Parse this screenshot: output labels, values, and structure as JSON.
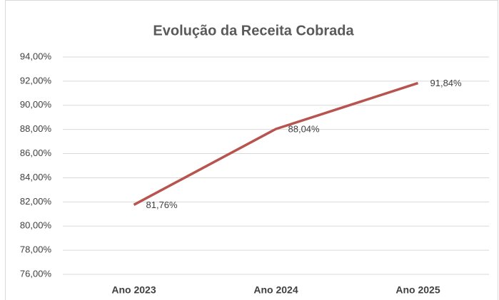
{
  "chart_data": {
    "type": "line",
    "title": "Evolução da Receita Cobrada",
    "categories": [
      "Ano 2023",
      "Ano 2024",
      "Ano 2025"
    ],
    "values": [
      81.76,
      88.04,
      91.84
    ],
    "value_labels": [
      "81,76%",
      "88,04%",
      "91,84%"
    ],
    "color": "#b85450",
    "ylim": [
      76,
      94
    ],
    "yticks": [
      {
        "value": 76,
        "label": "76,00%"
      },
      {
        "value": 78,
        "label": "78,00%"
      },
      {
        "value": 80,
        "label": "80,00%"
      },
      {
        "value": 82,
        "label": "82,00%"
      },
      {
        "value": 84,
        "label": "84,00%"
      },
      {
        "value": 86,
        "label": "86,00%"
      },
      {
        "value": 88,
        "label": "88,00%"
      },
      {
        "value": 90,
        "label": "90,00%"
      },
      {
        "value": 92,
        "label": "92,00%"
      },
      {
        "value": 94,
        "label": "94,00%"
      }
    ],
    "grid": true
  }
}
